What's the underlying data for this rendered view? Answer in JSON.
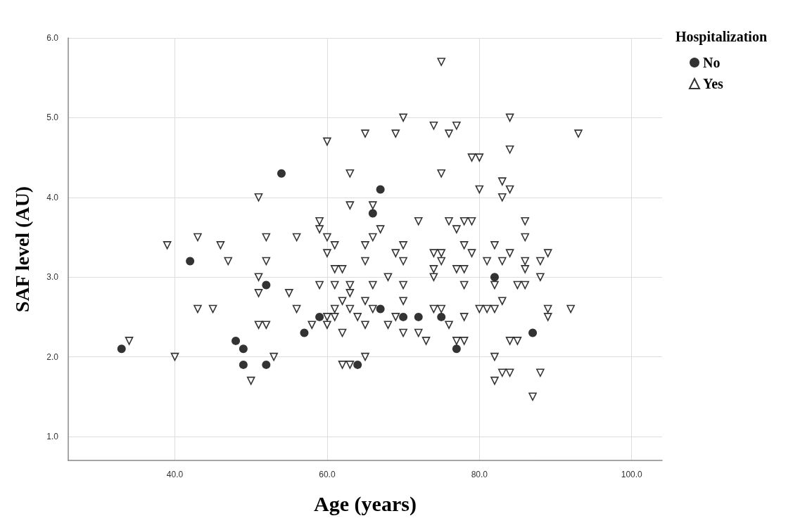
{
  "chart_data": {
    "type": "scatter",
    "xlabel": "Age (years)",
    "ylabel": "SAF level (AU)",
    "legend_title": "Hospitalization",
    "legend": "top right",
    "grid": true,
    "xlim": [
      26,
      104
    ],
    "xticks": [
      {
        "value": 40,
        "label": "40.0"
      },
      {
        "value": 60,
        "label": "60.0"
      },
      {
        "value": 80,
        "label": "80.0"
      },
      {
        "value": 100,
        "label": "100.0"
      }
    ],
    "ylim": [
      0.7,
      6.0
    ],
    "yticks": [
      {
        "value": 1,
        "label": "1.0"
      },
      {
        "value": 2,
        "label": "2.0"
      },
      {
        "value": 3,
        "label": "3.0"
      },
      {
        "value": 4,
        "label": "4.0"
      },
      {
        "value": 5,
        "label": "5.0"
      },
      {
        "value": 6,
        "label": "6.0"
      }
    ],
    "series": [
      {
        "name": "No",
        "color": "#000000",
        "marker": "circle",
        "x": [
          33,
          42,
          48,
          49,
          49,
          52,
          52,
          54,
          57,
          59,
          64,
          66,
          67,
          67,
          70,
          72,
          75,
          77,
          82,
          87
        ],
        "values": [
          2.1,
          3.2,
          2.2,
          2.1,
          1.9,
          2.9,
          1.9,
          4.3,
          2.3,
          2.5,
          1.9,
          3.8,
          4.1,
          2.6,
          2.5,
          2.5,
          2.5,
          2.1,
          3.0,
          2.3
        ]
      },
      {
        "name": "Yes",
        "color": "#000000",
        "marker": "triangle",
        "x": [
          51,
          43,
          39,
          46,
          52,
          47,
          52,
          51,
          51,
          43,
          45,
          51,
          52,
          34,
          40,
          50,
          65,
          60,
          63,
          63,
          66,
          59,
          59,
          67,
          56,
          60,
          66,
          61,
          65,
          60,
          65,
          61,
          62,
          68,
          59,
          61,
          63,
          66,
          55,
          63,
          62,
          65,
          56,
          61,
          63,
          66,
          60,
          61,
          64,
          58,
          60,
          65,
          68,
          62,
          53,
          65,
          62,
          63,
          75,
          70,
          74,
          77,
          69,
          76,
          79,
          80,
          75,
          80,
          72,
          76,
          78,
          79,
          77,
          70,
          78,
          69,
          74,
          75,
          79,
          81,
          70,
          75,
          74,
          77,
          78,
          74,
          70,
          78,
          70,
          74,
          75,
          80,
          81,
          69,
          78,
          76,
          70,
          72,
          73,
          77,
          78,
          84,
          93,
          84,
          83,
          84,
          83,
          86,
          86,
          82,
          84,
          89,
          83,
          86,
          88,
          86,
          88,
          82,
          85,
          86,
          83,
          82,
          89,
          92,
          89,
          84,
          85,
          82,
          83,
          84,
          88,
          82,
          87
        ],
        "values": [
          4.0,
          3.5,
          3.4,
          3.4,
          3.5,
          3.2,
          3.2,
          3.0,
          2.8,
          2.6,
          2.6,
          2.4,
          2.4,
          2.2,
          2.0,
          1.7,
          4.8,
          4.7,
          4.3,
          3.9,
          3.9,
          3.7,
          3.6,
          3.6,
          3.5,
          3.5,
          3.5,
          3.4,
          3.4,
          3.3,
          3.2,
          3.1,
          3.1,
          3.0,
          2.9,
          2.9,
          2.9,
          2.9,
          2.8,
          2.8,
          2.7,
          2.7,
          2.6,
          2.6,
          2.6,
          2.6,
          2.5,
          2.5,
          2.5,
          2.4,
          2.4,
          2.4,
          2.4,
          2.3,
          2.0,
          2.0,
          1.9,
          1.9,
          5.7,
          5.0,
          4.9,
          4.9,
          4.8,
          4.8,
          4.5,
          4.5,
          4.3,
          4.1,
          3.7,
          3.7,
          3.7,
          3.7,
          3.6,
          3.4,
          3.4,
          3.3,
          3.3,
          3.3,
          3.3,
          3.2,
          3.2,
          3.2,
          3.1,
          3.1,
          3.1,
          3.0,
          2.9,
          2.9,
          2.7,
          2.6,
          2.6,
          2.6,
          2.6,
          2.5,
          2.5,
          2.4,
          2.3,
          2.3,
          2.2,
          2.2,
          2.2,
          5.0,
          4.8,
          4.6,
          4.2,
          4.1,
          4.0,
          3.7,
          3.5,
          3.4,
          3.3,
          3.3,
          3.2,
          3.2,
          3.2,
          3.1,
          3.0,
          2.9,
          2.9,
          2.9,
          2.7,
          2.6,
          2.6,
          2.6,
          2.5,
          2.2,
          2.2,
          2.0,
          1.8,
          1.8,
          1.8,
          1.7,
          1.5
        ]
      }
    ]
  }
}
